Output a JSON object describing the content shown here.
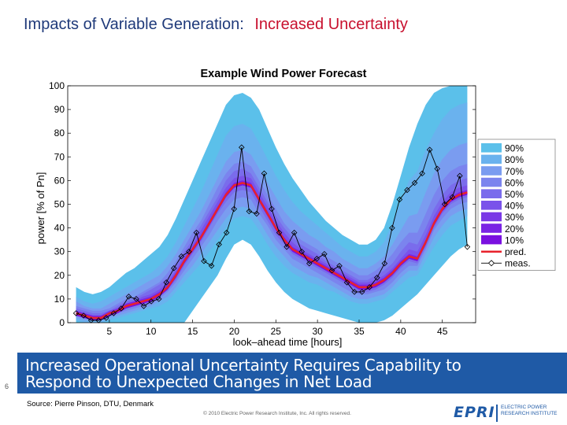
{
  "slide": {
    "title_part1": "Impacts of Variable Generation:",
    "title_part2": "Increased Uncertainty",
    "banner_line1": "Increased Operational Uncertainty Requires Capability to",
    "banner_line2": "Respond to Unexpected Changes in Net Load",
    "slide_number": "6",
    "source": "Source: Pierre Pinson, DTU, Denmark",
    "copyright": "© 2010 Electric Power Research Institute, Inc. All rights reserved.",
    "logo_mark": "EPRI",
    "logo_sub_line1": "ELECTRIC POWER",
    "logo_sub_line2": "RESEARCH INSTITUTE",
    "title_color": "#1f3a7a",
    "title_accent_color": "#c8102e",
    "banner_color": "#1f5aa6"
  },
  "chart_data": {
    "type": "area",
    "title": "Example Wind Power Forecast",
    "xlabel": "look–ahead time [hours]",
    "ylabel": "power [% of Pn]",
    "xlim": [
      0,
      49
    ],
    "ylim": [
      0,
      100
    ],
    "xticks": [
      5,
      10,
      15,
      20,
      25,
      30,
      35,
      40,
      45
    ],
    "yticks": [
      0,
      10,
      20,
      30,
      40,
      50,
      60,
      70,
      80,
      90,
      100
    ],
    "grid": false,
    "legend_position": "right",
    "x": [
      1,
      2,
      3,
      4,
      5,
      6,
      7,
      8,
      9,
      10,
      11,
      12,
      13,
      14,
      15,
      16,
      17,
      18,
      19,
      20,
      21,
      22,
      23,
      24,
      25,
      26,
      27,
      28,
      29,
      30,
      31,
      32,
      33,
      34,
      35,
      36,
      37,
      38,
      39,
      40,
      41,
      42,
      43,
      44,
      45,
      46,
      47,
      48
    ],
    "pred": [
      4,
      3,
      2,
      2,
      4,
      5,
      7,
      8,
      9,
      10,
      12,
      15,
      20,
      26,
      31,
      36,
      42,
      48,
      54,
      58,
      59,
      58,
      52,
      46,
      40,
      35,
      31,
      29,
      27,
      25,
      23,
      21,
      19,
      17,
      15,
      15,
      16,
      18,
      21,
      25,
      28,
      27,
      34,
      42,
      48,
      52,
      54,
      55
    ],
    "meas": [
      4,
      3,
      1,
      1,
      2,
      4,
      6,
      11,
      10,
      7,
      9,
      10,
      17,
      23,
      28,
      30,
      38,
      26,
      24,
      33,
      38,
      48,
      74,
      47,
      46,
      63,
      48,
      38,
      32,
      38,
      30,
      25,
      27,
      29,
      22,
      24,
      17,
      13,
      13,
      15,
      19,
      25,
      40,
      52,
      56,
      59,
      63,
      73,
      65,
      50,
      53,
      62,
      32
    ],
    "meas_x": [
      1,
      2,
      3,
      4,
      5,
      6,
      7,
      8,
      9,
      10,
      11,
      12,
      13,
      14,
      15,
      16,
      17,
      18,
      19,
      20,
      21,
      22,
      23,
      24,
      25,
      26,
      27,
      28,
      29,
      30,
      31,
      32,
      33,
      34,
      35,
      36,
      37,
      38,
      39,
      40,
      41,
      42,
      43,
      44,
      45,
      46,
      47,
      48,
      49,
      50,
      51,
      52,
      53
    ],
    "bands": [
      {
        "name": "90%",
        "color": "#5bc0ea",
        "lower": [
          0,
          0,
          0,
          0,
          0,
          0,
          0,
          0,
          0,
          0,
          0,
          0,
          0,
          0,
          5,
          10,
          15,
          20,
          27,
          33,
          35,
          33,
          28,
          22,
          17,
          13,
          10,
          8,
          6,
          5,
          4,
          3,
          2,
          1,
          0,
          0,
          0,
          1,
          3,
          6,
          9,
          12,
          16,
          20,
          24,
          28,
          31,
          33
        ],
        "upper": [
          15,
          13,
          12,
          13,
          15,
          18,
          21,
          23,
          26,
          29,
          32,
          37,
          44,
          52,
          60,
          68,
          76,
          84,
          92,
          96,
          97,
          95,
          90,
          82,
          74,
          67,
          61,
          56,
          51,
          47,
          43,
          40,
          37,
          35,
          33,
          33,
          35,
          40,
          50,
          62,
          74,
          84,
          92,
          97,
          99,
          100,
          100,
          100
        ]
      },
      {
        "name": "80%",
        "color": "#6ab2ee",
        "lower": [
          1,
          0,
          0,
          0,
          1,
          2,
          3,
          4,
          5,
          6,
          7,
          9,
          13,
          17,
          21,
          25,
          30,
          35,
          40,
          44,
          45,
          44,
          39,
          33,
          28,
          24,
          21,
          19,
          17,
          16,
          14,
          13,
          11,
          9,
          8,
          8,
          9,
          10,
          13,
          16,
          19,
          20,
          26,
          32,
          37,
          41,
          43,
          45
        ],
        "upper": [
          11,
          9,
          8,
          9,
          11,
          13,
          15,
          17,
          19,
          21,
          24,
          28,
          34,
          41,
          48,
          55,
          63,
          71,
          79,
          83,
          84,
          82,
          76,
          69,
          62,
          56,
          51,
          47,
          44,
          41,
          38,
          35,
          32,
          30,
          28,
          28,
          30,
          34,
          42,
          51,
          60,
          64,
          73,
          80,
          86,
          90,
          92,
          93
        ]
      },
      {
        "name": "70%",
        "color": "#7a9cf0",
        "lower": [
          2,
          1,
          1,
          1,
          2,
          3,
          4,
          5,
          6,
          7,
          9,
          11,
          15,
          20,
          24,
          29,
          34,
          39,
          44,
          48,
          49,
          48,
          43,
          37,
          32,
          28,
          24,
          22,
          20,
          19,
          17,
          15,
          13,
          11,
          10,
          10,
          11,
          12,
          15,
          19,
          22,
          22,
          29,
          36,
          41,
          45,
          47,
          48
        ],
        "upper": [
          9,
          7,
          6,
          6,
          8,
          10,
          12,
          14,
          16,
          18,
          20,
          24,
          29,
          35,
          41,
          47,
          54,
          61,
          68,
          72,
          73,
          71,
          65,
          59,
          53,
          47,
          43,
          40,
          37,
          35,
          32,
          30,
          27,
          25,
          23,
          23,
          25,
          28,
          33,
          39,
          45,
          46,
          55,
          63,
          69,
          73,
          75,
          76
        ]
      },
      {
        "name": "60%",
        "color": "#7b84ee",
        "lower": [
          3,
          2,
          1,
          1,
          3,
          4,
          5,
          6,
          7,
          8,
          10,
          13,
          17,
          22,
          27,
          32,
          37,
          43,
          48,
          52,
          53,
          52,
          46,
          41,
          35,
          31,
          27,
          25,
          23,
          21,
          19,
          17,
          15,
          13,
          12,
          12,
          13,
          14,
          17,
          21,
          24,
          24,
          31,
          39,
          44,
          48,
          50,
          51
        ],
        "upper": [
          7,
          6,
          5,
          5,
          6,
          8,
          10,
          11,
          13,
          15,
          17,
          21,
          26,
          32,
          38,
          43,
          50,
          57,
          63,
          67,
          68,
          66,
          60,
          54,
          48,
          42,
          38,
          35,
          33,
          31,
          28,
          26,
          24,
          22,
          20,
          20,
          22,
          25,
          29,
          34,
          38,
          38,
          46,
          54,
          60,
          64,
          66,
          67
        ]
      },
      {
        "name": "50%",
        "color": "#7a6cec",
        "lower": [
          3,
          2,
          1,
          1,
          3,
          4,
          6,
          7,
          8,
          9,
          11,
          14,
          18,
          24,
          29,
          34,
          40,
          46,
          51,
          55,
          56,
          55,
          49,
          43,
          37,
          33,
          29,
          27,
          25,
          23,
          21,
          19,
          17,
          15,
          13,
          13,
          14,
          16,
          19,
          23,
          26,
          25,
          32,
          40,
          46,
          50,
          52,
          53
        ],
        "upper": [
          6,
          5,
          4,
          4,
          5,
          7,
          9,
          10,
          12,
          14,
          16,
          19,
          24,
          30,
          35,
          41,
          47,
          53,
          60,
          64,
          65,
          63,
          57,
          51,
          45,
          40,
          36,
          33,
          31,
          29,
          26,
          24,
          22,
          20,
          18,
          18,
          20,
          22,
          25,
          30,
          34,
          33,
          40,
          48,
          54,
          58,
          60,
          61
        ]
      },
      {
        "name": "40%",
        "color": "#7a52ea",
        "lower": [
          3,
          2,
          1,
          1,
          3,
          4,
          6,
          7,
          8,
          9,
          11,
          14,
          19,
          25,
          30,
          35,
          41,
          47,
          53,
          57,
          58,
          57,
          51,
          45,
          39,
          34,
          30,
          28,
          26,
          24,
          22,
          20,
          18,
          16,
          14,
          14,
          15,
          17,
          20,
          24,
          27,
          26,
          33,
          41,
          47,
          51,
          53,
          54
        ],
        "upper": [
          5,
          4,
          3,
          3,
          5,
          6,
          8,
          9,
          11,
          12,
          14,
          17,
          22,
          28,
          33,
          39,
          45,
          51,
          57,
          61,
          62,
          61,
          55,
          49,
          43,
          38,
          34,
          31,
          29,
          27,
          25,
          23,
          21,
          19,
          17,
          17,
          18,
          20,
          23,
          27,
          31,
          30,
          37,
          45,
          51,
          55,
          57,
          58
        ]
      },
      {
        "name": "30%",
        "color": "#7a38e6",
        "lower": [
          3,
          2,
          1,
          1,
          3,
          4,
          6,
          7,
          8,
          9,
          11,
          14,
          19,
          25,
          30,
          35,
          41,
          47,
          53,
          57,
          58,
          57,
          51,
          45,
          39,
          34,
          30,
          28,
          26,
          24,
          22,
          20,
          18,
          16,
          14,
          14,
          15,
          17,
          20,
          24,
          27,
          26,
          33,
          41,
          47,
          51,
          53,
          54
        ],
        "upper": [
          5,
          4,
          3,
          3,
          5,
          6,
          8,
          9,
          10,
          11,
          13,
          16,
          21,
          27,
          32,
          37,
          43,
          49,
          55,
          59,
          60,
          59,
          53,
          47,
          41,
          36,
          32,
          30,
          28,
          26,
          24,
          22,
          20,
          18,
          16,
          16,
          17,
          19,
          22,
          26,
          29,
          28,
          35,
          43,
          49,
          53,
          55,
          56
        ]
      },
      {
        "name": "20%",
        "color": "#7a24e4",
        "lower": [
          3,
          2,
          1,
          1,
          3,
          4,
          6,
          7,
          8,
          9,
          11,
          14,
          19,
          25,
          30,
          35,
          41,
          47,
          53,
          57,
          58,
          57,
          51,
          45,
          39,
          34,
          30,
          28,
          26,
          24,
          22,
          20,
          18,
          16,
          14,
          14,
          15,
          17,
          20,
          24,
          27,
          26,
          33,
          41,
          47,
          51,
          53,
          54
        ],
        "upper": [
          5,
          4,
          3,
          3,
          4,
          6,
          8,
          9,
          10,
          11,
          13,
          16,
          21,
          27,
          32,
          37,
          43,
          49,
          55,
          59,
          60,
          59,
          53,
          47,
          41,
          36,
          32,
          30,
          28,
          26,
          24,
          22,
          20,
          18,
          16,
          16,
          17,
          19,
          22,
          26,
          29,
          28,
          35,
          43,
          49,
          53,
          55,
          56
        ]
      },
      {
        "name": "10%",
        "color": "#7a10e0",
        "lower": [
          3,
          2,
          1,
          1,
          3,
          4,
          6,
          7,
          8,
          9,
          11,
          14,
          19,
          25,
          30,
          35,
          41,
          47,
          53,
          57,
          58,
          57,
          51,
          45,
          39,
          34,
          30,
          28,
          26,
          24,
          22,
          20,
          18,
          16,
          14,
          14,
          15,
          17,
          20,
          24,
          27,
          26,
          33,
          41,
          47,
          51,
          53,
          54
        ],
        "upper": [
          4,
          3,
          2,
          2,
          4,
          5,
          7,
          8,
          9,
          10,
          12,
          15,
          20,
          26,
          31,
          36,
          42,
          48,
          54,
          58,
          59,
          58,
          52,
          46,
          40,
          35,
          31,
          29,
          27,
          25,
          23,
          21,
          19,
          17,
          15,
          15,
          16,
          18,
          21,
          25,
          28,
          27,
          34,
          42,
          48,
          52,
          54,
          55
        ]
      }
    ],
    "legend": [
      "90%",
      "80%",
      "70%",
      "60%",
      "50%",
      "40%",
      "30%",
      "20%",
      "10%",
      "pred.",
      "meas."
    ],
    "pred_color": "#e8212b",
    "meas_color": "#000000"
  }
}
